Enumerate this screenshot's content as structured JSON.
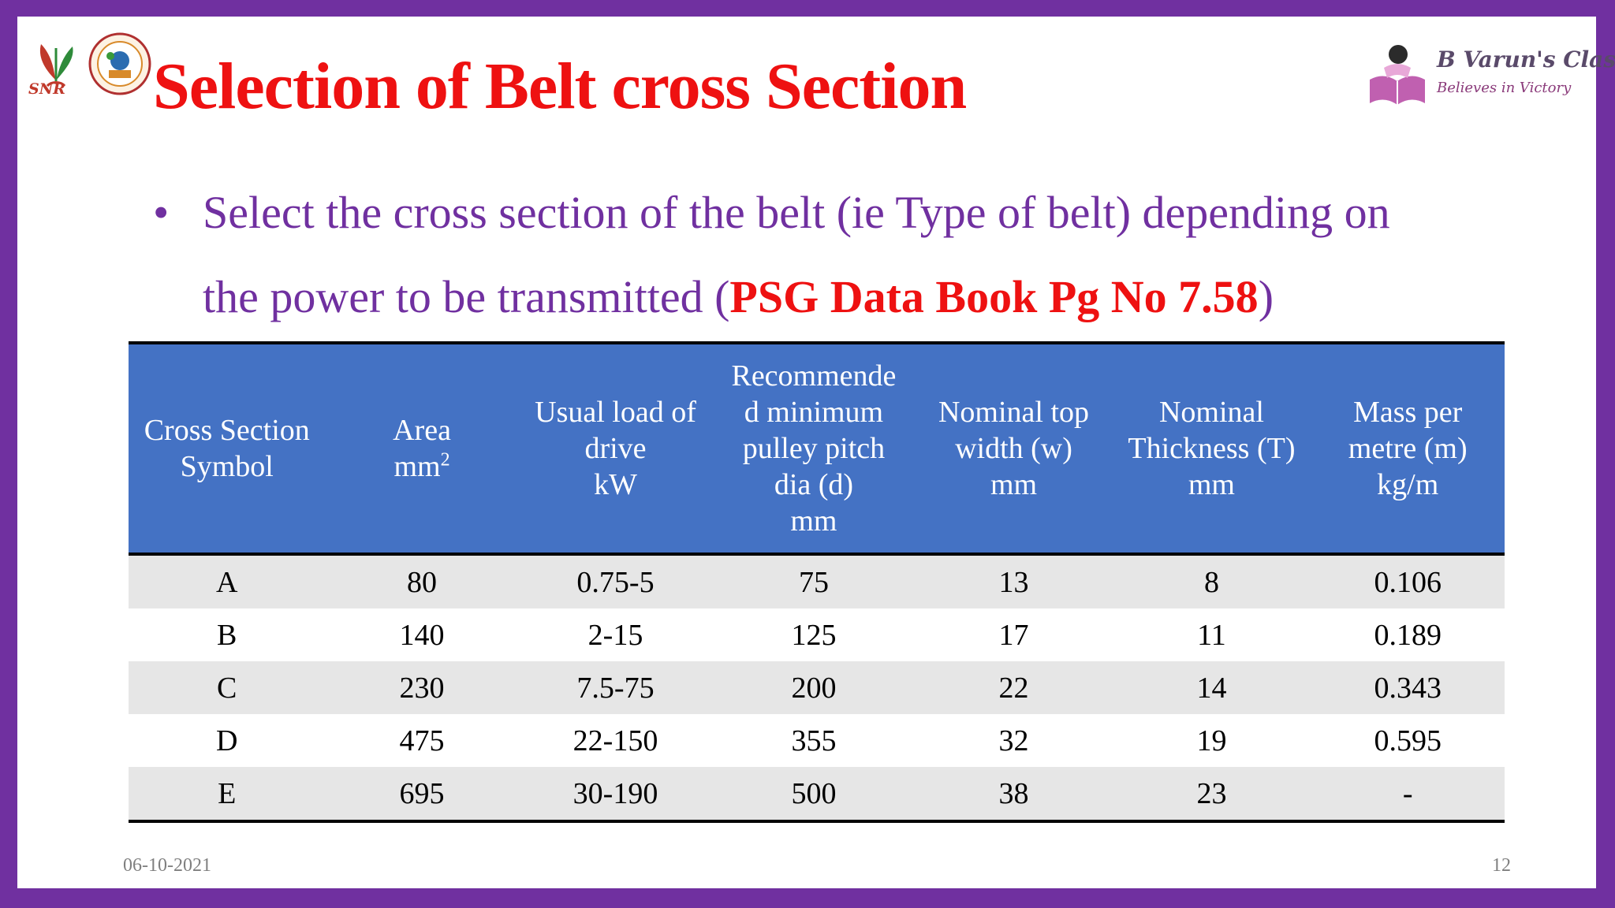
{
  "logos": {
    "left_text": "SNR",
    "right_name": "B Varun's Class",
    "right_tagline": "Believes in Victory"
  },
  "slide": {
    "title": "Selection of Belt cross Section",
    "bullet_line1": "Select the cross section of the belt (ie Type of belt) depending on",
    "bullet_line2": "the power to be transmitted (",
    "bullet_ref": "PSG Data Book Pg No 7.58",
    "bullet_close": ")"
  },
  "table": {
    "headers": [
      {
        "text": "Cross Section\nSymbol"
      },
      {
        "text": "Area\nmm",
        "sup": "2"
      },
      {
        "text": "Usual load of\ndrive\nkW"
      },
      {
        "text": "Recommende\nd minimum\npulley pitch\ndia (d)\nmm"
      },
      {
        "text": "Nominal top\nwidth (w)\nmm"
      },
      {
        "text": "Nominal\nThickness (T)\nmm"
      },
      {
        "text": "Mass per\nmetre (m)\nkg/m"
      }
    ],
    "rows": [
      [
        "A",
        "80",
        "0.75-5",
        "75",
        "13",
        "8",
        "0.106"
      ],
      [
        "B",
        "140",
        "2-15",
        "125",
        "17",
        "11",
        "0.189"
      ],
      [
        "C",
        "230",
        "7.5-75",
        "200",
        "22",
        "14",
        "0.343"
      ],
      [
        "D",
        "475",
        "22-150",
        "355",
        "32",
        "19",
        "0.595"
      ],
      [
        "E",
        "695",
        "30-190",
        "500",
        "38",
        "23",
        "-"
      ]
    ]
  },
  "footer": {
    "date": "06-10-2021",
    "page": "12"
  },
  "colors": {
    "frame": "#7030a0",
    "title": "#ee1111",
    "bullet": "#7030a0",
    "header_bg": "#4472c4",
    "row_band": "#e6e6e6"
  }
}
